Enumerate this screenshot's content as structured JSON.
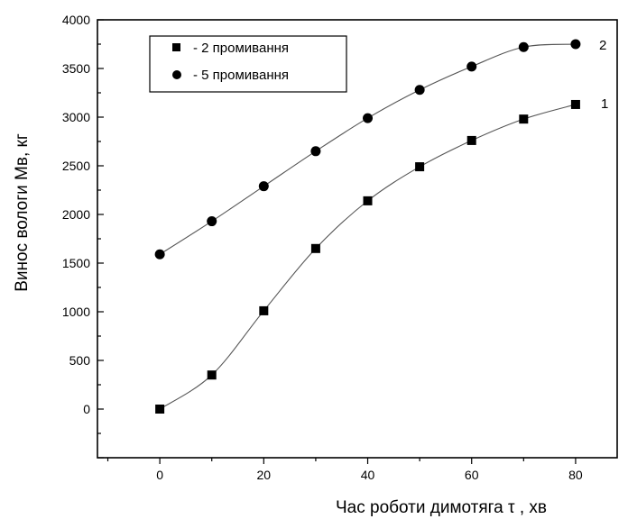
{
  "chart_data": {
    "type": "scatter",
    "xlabel": "Час роботи димотяга τ , хв",
    "ylabel": "Винос вологи Мв, кг",
    "xlim": [
      -12,
      88
    ],
    "ylim": [
      -500,
      4000
    ],
    "x_ticks": [
      0,
      20,
      40,
      60,
      80
    ],
    "y_ticks": [
      0,
      500,
      1000,
      1500,
      2000,
      2500,
      3000,
      3500,
      4000
    ],
    "grid": false,
    "legend_position": "top-left",
    "series": [
      {
        "name": "- 2 промивання",
        "marker": "square",
        "curve_label": "1",
        "x": [
          0,
          10,
          20,
          30,
          40,
          50,
          60,
          70,
          80
        ],
        "y": [
          0,
          350,
          1010,
          1650,
          2140,
          2490,
          2760,
          2980,
          3130
        ]
      },
      {
        "name": "- 5 промивання",
        "marker": "circle",
        "curve_label": "2",
        "x": [
          0,
          10,
          20,
          30,
          40,
          50,
          60,
          70,
          80
        ],
        "y": [
          1590,
          1930,
          2290,
          2650,
          2990,
          3280,
          3520,
          3720,
          3750
        ]
      }
    ]
  }
}
